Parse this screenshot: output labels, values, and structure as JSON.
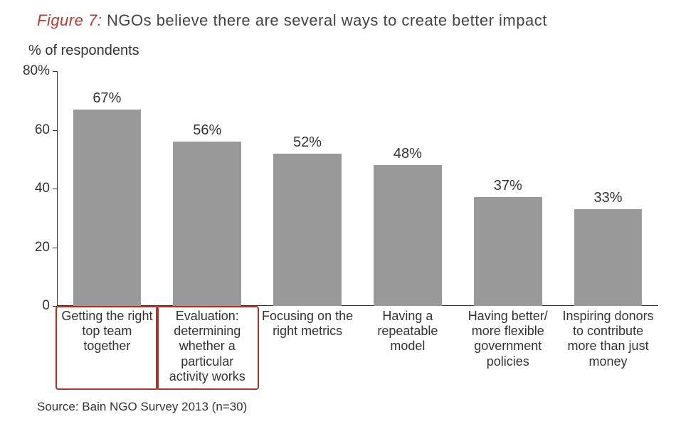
{
  "figure_label": "Figure 7",
  "figure_colon": ":",
  "title": "NGOs believe there are several ways to create better impact",
  "y_axis_title": "% of respondents",
  "source": "Source: Bain NGO Survey 2013 (n=30)",
  "chart": {
    "type": "bar",
    "ymax": 80,
    "ymin": 0,
    "ytick_step": 20,
    "yticks": [
      0,
      20,
      40,
      60,
      80
    ],
    "ytick_labels": [
      "0",
      "20",
      "40",
      "60",
      "80%"
    ],
    "bar_color": "#999999",
    "axis_color": "#333333",
    "text_color": "#333333",
    "accent_color": "#c0392b",
    "highlight_box_color": "#b03028",
    "background_color": "#ffffff",
    "value_fontsize": 20,
    "axis_fontsize": 19,
    "label_fontsize": 18,
    "title_fontsize": 22,
    "bar_width_ratio": 0.68,
    "bars": [
      {
        "label": "Getting the right top team together",
        "value": 67,
        "value_label": "67%",
        "highlight": true
      },
      {
        "label": "Evaluation: determining whether a particular activity works",
        "value": 56,
        "value_label": "56%",
        "highlight": true
      },
      {
        "label": "Focusing on the right metrics",
        "value": 52,
        "value_label": "52%",
        "highlight": false
      },
      {
        "label": "Having a repeatable model",
        "value": 48,
        "value_label": "48%",
        "highlight": false
      },
      {
        "label": "Having better/ more flexible government policies",
        "value": 37,
        "value_label": "37%",
        "highlight": false
      },
      {
        "label": "Inspiring donors to contribute more than just money",
        "value": 33,
        "value_label": "33%",
        "highlight": false
      }
    ]
  }
}
